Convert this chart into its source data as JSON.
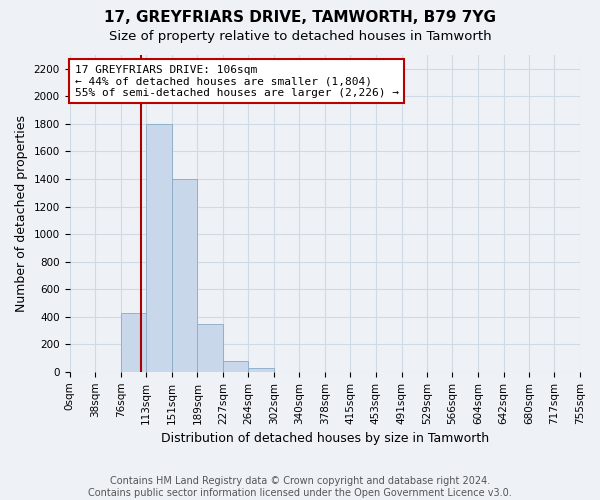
{
  "title": "17, GREYFRIARS DRIVE, TAMWORTH, B79 7YG",
  "subtitle": "Size of property relative to detached houses in Tamworth",
  "xlabel": "Distribution of detached houses by size in Tamworth",
  "ylabel": "Number of detached properties",
  "footer_line1": "Contains HM Land Registry data © Crown copyright and database right 2024.",
  "footer_line2": "Contains public sector information licensed under the Open Government Licence v3.0.",
  "bin_edges": [
    0,
    38,
    76,
    113,
    151,
    189,
    227,
    264,
    302,
    340,
    378,
    415,
    453,
    491,
    529,
    566,
    604,
    642,
    680,
    717,
    755
  ],
  "bin_counts": [
    0,
    0,
    430,
    1800,
    1400,
    350,
    80,
    25,
    0,
    0,
    0,
    0,
    0,
    0,
    0,
    0,
    0,
    0,
    0,
    0
  ],
  "bar_color": "#c8d8ea",
  "bar_edge_color": "#88aac8",
  "property_size": 106,
  "vline_color": "#aa0000",
  "annotation_line1": "17 GREYFRIARS DRIVE: 106sqm",
  "annotation_line2": "← 44% of detached houses are smaller (1,804)",
  "annotation_line3": "55% of semi-detached houses are larger (2,226) →",
  "annotation_box_color": "#ffffff",
  "annotation_box_edge_color": "#bb0000",
  "ylim": [
    0,
    2300
  ],
  "yticks": [
    0,
    200,
    400,
    600,
    800,
    1000,
    1200,
    1400,
    1600,
    1800,
    2000,
    2200
  ],
  "xlim_min": 0,
  "xlim_max": 755,
  "grid_color": "#d0dae4",
  "background_color": "#eef2f6",
  "title_fontsize": 11,
  "subtitle_fontsize": 9.5,
  "axis_label_fontsize": 9,
  "tick_fontsize": 7.5,
  "annotation_fontsize": 8,
  "footer_fontsize": 7
}
